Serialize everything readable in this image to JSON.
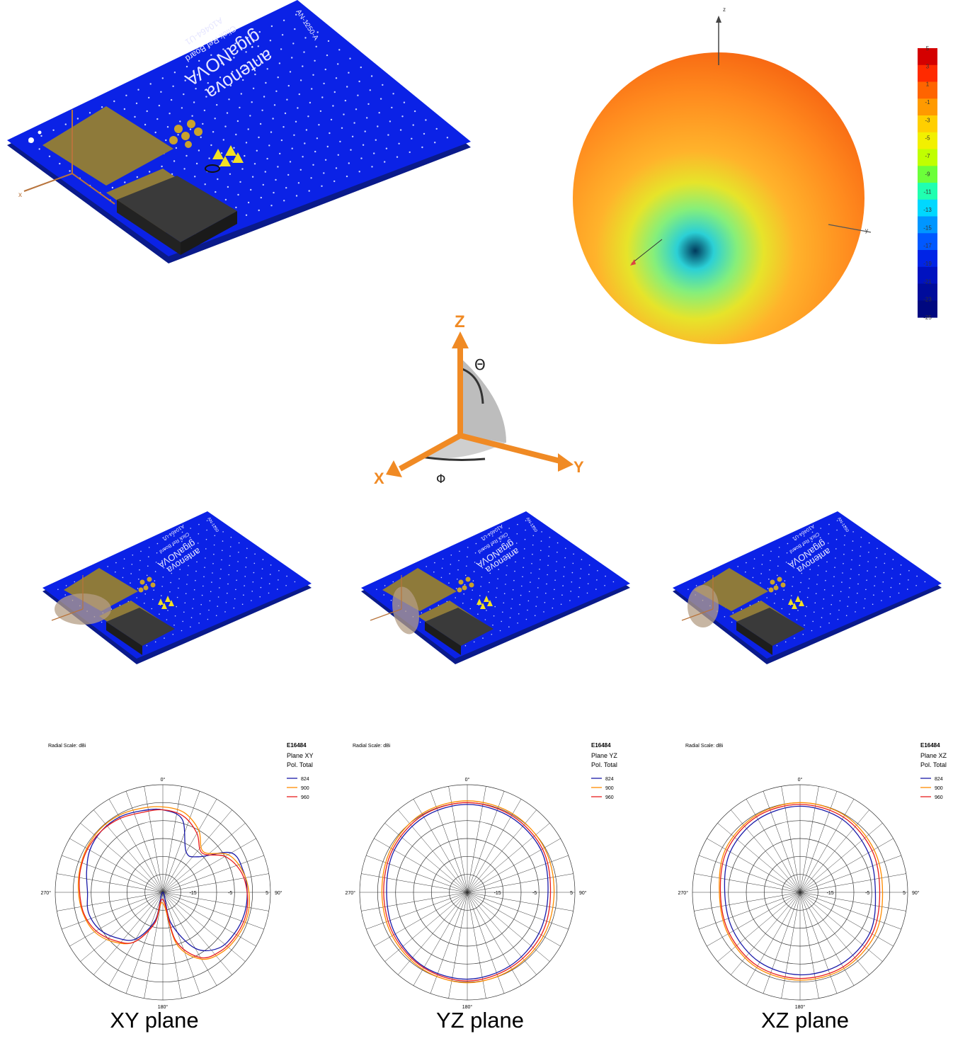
{
  "boards": {
    "main": {
      "lines": [
        "antenova",
        "gigaNOVA",
        "Click Ref Board",
        "A10464-U1",
        "AN-1250-A"
      ],
      "axis_label": "x"
    },
    "small": {
      "lines": [
        "antenova",
        "gigaNOVA",
        "Click Ref Board",
        "A10464-U1",
        "AN-1250"
      ]
    }
  },
  "sphere_3d": {
    "axes": [
      "z",
      "y"
    ],
    "colorbar": {
      "ticks": [
        "5",
        "3",
        "1",
        "-1",
        "-3",
        "-5",
        "-7",
        "-9",
        "-11",
        "-13",
        "-15",
        "-17",
        "-19",
        "-21",
        "-23",
        "-25"
      ],
      "colors": [
        "#d40000",
        "#ff2a00",
        "#ff6400",
        "#ff9a00",
        "#ffcf00",
        "#f2f000",
        "#c0ff00",
        "#6cff3a",
        "#20ffb0",
        "#00d8ff",
        "#0096ff",
        "#0058ff",
        "#0024e6",
        "#0012c0",
        "#000c9c",
        "#000880"
      ]
    }
  },
  "axes_diagram": {
    "z": "Z",
    "y": "Y",
    "x": "X",
    "theta": "Θ",
    "phi": "Φ"
  },
  "captions": [
    "XY plane",
    "YZ plane",
    "XZ plane"
  ],
  "chart_data": [
    {
      "type": "polar",
      "title": "E16484",
      "subtitle": [
        "Plane XY",
        "Pol. Total"
      ],
      "radial_scale_label": "Radial Scale: dBi",
      "angle_labels": [
        "0°",
        "90°",
        "180°",
        "270°"
      ],
      "radial_tick_labels": [
        "-15",
        "-5",
        "5"
      ],
      "rlim": [
        -25,
        5
      ],
      "angle_convention": "0° at top, increasing clockwise",
      "series": [
        {
          "name": "824",
          "color": "#1a1aa8",
          "angles": [
            0,
            15,
            30,
            45,
            60,
            75,
            90,
            105,
            120,
            135,
            150,
            165,
            180,
            195,
            210,
            225,
            240,
            255,
            270,
            285,
            300,
            315,
            330,
            345
          ],
          "values": [
            -2,
            -4,
            -12,
            -11,
            -3,
            -1.8,
            -1.5,
            -1.5,
            -2,
            -3,
            -7,
            -16,
            -25,
            -17,
            -10,
            -7,
            -4.5,
            -3.5,
            -4,
            -3,
            -1.5,
            -0.8,
            -0.8,
            -1.5
          ]
        },
        {
          "name": "900",
          "color": "#ff8c00",
          "angles": [
            0,
            15,
            30,
            45,
            60,
            75,
            90,
            105,
            120,
            135,
            150,
            165,
            180,
            195,
            210,
            225,
            240,
            255,
            270,
            285,
            300,
            315,
            330,
            345
          ],
          "values": [
            -1.2,
            -2,
            -5,
            -9,
            -4,
            -2,
            -1,
            -0.5,
            -0.8,
            -1.5,
            -3.5,
            -10,
            -22,
            -16,
            -9,
            -5.5,
            -3,
            -2,
            -1.5,
            -1,
            -0.5,
            -0.2,
            -0.3,
            -0.8
          ]
        },
        {
          "name": "960",
          "color": "#e81e1e",
          "angles": [
            0,
            15,
            30,
            45,
            60,
            75,
            90,
            105,
            120,
            135,
            150,
            165,
            180,
            195,
            210,
            225,
            240,
            255,
            270,
            285,
            300,
            315,
            330,
            345
          ],
          "values": [
            -2,
            -3,
            -6,
            -9.5,
            -5,
            -2.5,
            -1.5,
            -1,
            -1.3,
            -2,
            -4,
            -11,
            -23,
            -16,
            -9,
            -6,
            -3.5,
            -2.2,
            -1.8,
            -1.2,
            -0.8,
            -0.8,
            -1.2,
            -2
          ]
        }
      ]
    },
    {
      "type": "polar",
      "title": "E16484",
      "subtitle": [
        "Plane YZ",
        "Pol. Total"
      ],
      "radial_scale_label": "Radial Scale: dBi",
      "angle_labels": [
        "0°",
        "90°",
        "180°",
        "270°"
      ],
      "radial_tick_labels": [
        "-15",
        "-5",
        "5"
      ],
      "rlim": [
        -25,
        5
      ],
      "angle_convention": "0° at top, increasing clockwise",
      "series": [
        {
          "name": "824",
          "color": "#1a1aa8",
          "angles": [
            0,
            30,
            60,
            90,
            120,
            150,
            180,
            210,
            240,
            270,
            300,
            330
          ],
          "values": [
            -0.5,
            -0.8,
            -1.3,
            -2.5,
            -2,
            -1.3,
            -0.8,
            -1,
            -1.8,
            -2.5,
            -1.5,
            -0.8
          ]
        },
        {
          "name": "900",
          "color": "#ff8c00",
          "angles": [
            0,
            30,
            60,
            90,
            120,
            150,
            180,
            210,
            240,
            270,
            300,
            330
          ],
          "values": [
            0.5,
            0.3,
            -0.2,
            -0.8,
            -0.5,
            -0.2,
            0.2,
            -0.2,
            -0.8,
            -1.2,
            -0.5,
            0.3
          ]
        },
        {
          "name": "960",
          "color": "#e81e1e",
          "angles": [
            0,
            30,
            60,
            90,
            120,
            150,
            180,
            210,
            240,
            270,
            300,
            330
          ],
          "values": [
            0,
            -0.3,
            -0.8,
            -1.8,
            -1.2,
            -0.8,
            -0.3,
            -0.7,
            -1.3,
            -1.7,
            -1,
            -0.2
          ]
        }
      ]
    },
    {
      "type": "polar",
      "title": "E16484",
      "subtitle": [
        "Plane XZ",
        "Pol. Total"
      ],
      "radial_scale_label": "Radial Scale: dBi",
      "angle_labels": [
        "0°",
        "90°",
        "180°",
        "270°"
      ],
      "radial_tick_labels": [
        "-15",
        "-5",
        "5"
      ],
      "rlim": [
        -25,
        5
      ],
      "angle_convention": "0° at top, increasing clockwise",
      "series": [
        {
          "name": "824",
          "color": "#1a1aa8",
          "angles": [
            0,
            30,
            60,
            90,
            120,
            150,
            180,
            210,
            240,
            270,
            300,
            330
          ],
          "values": [
            -1,
            -1.5,
            -3,
            -4,
            -2.5,
            -2,
            -2,
            -2.5,
            -3.5,
            -4,
            -2.5,
            -1.5
          ]
        },
        {
          "name": "900",
          "color": "#ff8c00",
          "angles": [
            0,
            30,
            60,
            90,
            120,
            150,
            180,
            210,
            240,
            270,
            300,
            330
          ],
          "values": [
            0,
            -0.2,
            -1.2,
            -2,
            -1,
            -0.5,
            -0.5,
            -0.8,
            -1.8,
            -2.5,
            -1,
            -0.3
          ]
        },
        {
          "name": "960",
          "color": "#e81e1e",
          "angles": [
            0,
            30,
            60,
            90,
            120,
            150,
            180,
            210,
            240,
            270,
            300,
            330
          ],
          "values": [
            -0.5,
            -0.8,
            -1.8,
            -2.8,
            -1.8,
            -1,
            -1,
            -1.3,
            -2.2,
            -2.8,
            -1.5,
            -0.7
          ]
        }
      ]
    }
  ]
}
